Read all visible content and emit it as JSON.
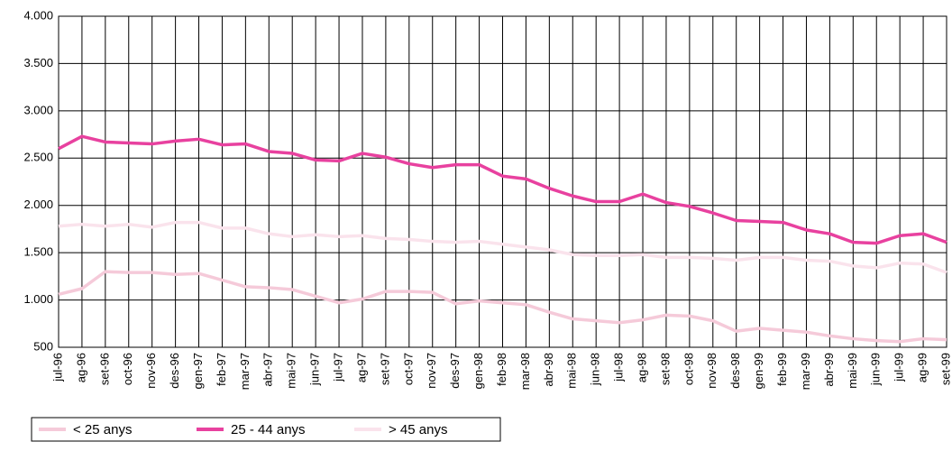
{
  "chart_data": {
    "type": "line",
    "categories": [
      "jul-96",
      "ag-96",
      "set-96",
      "oct-96",
      "nov-96",
      "des-96",
      "gen-97",
      "feb-97",
      "mar-97",
      "abr-97",
      "mai-97",
      "jun-97",
      "jul-97",
      "ag-97",
      "set-97",
      "oct-97",
      "nov-97",
      "des-97",
      "gen-98",
      "feb-98",
      "mar-98",
      "abr-98",
      "mai-98",
      "jun-98",
      "jul-98",
      "ag-98",
      "set-98",
      "oct-98",
      "nov-98",
      "des-98",
      "gen-99",
      "feb-99",
      "mar-99",
      "abr-99",
      "mai-99",
      "jun-99",
      "jul-99",
      "ag-99",
      "set-99"
    ],
    "series": [
      {
        "name": "< 25 anys",
        "color": "#f5cad9",
        "values": [
          1060,
          1120,
          1300,
          1290,
          1290,
          1270,
          1280,
          1210,
          1140,
          1130,
          1110,
          1040,
          970,
          1010,
          1090,
          1090,
          1080,
          960,
          990,
          970,
          950,
          870,
          800,
          780,
          760,
          790,
          840,
          830,
          780,
          670,
          700,
          680,
          660,
          620,
          590,
          570,
          560,
          590,
          580
        ]
      },
      {
        "name": "25 - 44 anys",
        "color": "#e8419f",
        "values": [
          2600,
          2730,
          2670,
          2660,
          2650,
          2680,
          2700,
          2640,
          2650,
          2570,
          2550,
          2480,
          2470,
          2550,
          2510,
          2440,
          2400,
          2430,
          2430,
          2310,
          2280,
          2180,
          2100,
          2040,
          2040,
          2120,
          2030,
          1990,
          1920,
          1840,
          1830,
          1820,
          1740,
          1700,
          1610,
          1600,
          1680,
          1700,
          1610
        ]
      },
      {
        "name": "> 45 anys",
        "color": "#fae3ec",
        "values": [
          1780,
          1800,
          1780,
          1800,
          1770,
          1820,
          1820,
          1760,
          1760,
          1700,
          1670,
          1690,
          1670,
          1680,
          1650,
          1640,
          1620,
          1610,
          1620,
          1590,
          1560,
          1530,
          1480,
          1470,
          1470,
          1480,
          1450,
          1450,
          1440,
          1420,
          1450,
          1450,
          1420,
          1410,
          1360,
          1340,
          1390,
          1380,
          1290
        ]
      }
    ],
    "ylim": [
      500,
      4000
    ],
    "yticks": [
      500,
      {
        "value": 1000,
        "label": "1.000"
      },
      {
        "value": 1500,
        "label": "1.500"
      },
      {
        "value": 2000,
        "label": "2.000"
      },
      {
        "value": 2500,
        "label": "2.500"
      },
      {
        "value": 3000,
        "label": "3.000"
      },
      {
        "value": 3500,
        "label": "3.500"
      },
      {
        "value": 4000,
        "label": "4.000"
      }
    ],
    "grid": true,
    "legend": "bottom"
  }
}
